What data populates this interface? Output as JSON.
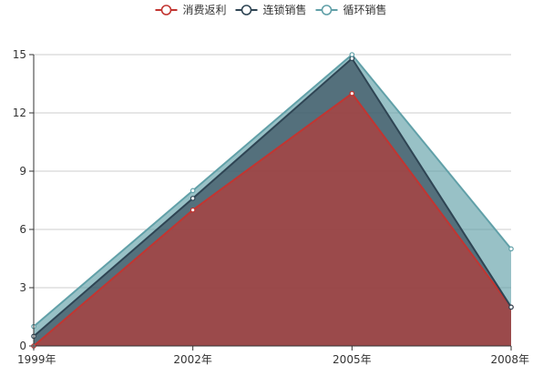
{
  "chart_data": {
    "type": "area",
    "stacked": true,
    "categories": [
      "1999年",
      "2002年",
      "2005年",
      "2008年"
    ],
    "series": [
      {
        "name": "消费返利",
        "values": [
          0,
          7,
          13,
          2
        ],
        "color": "#c23531"
      },
      {
        "name": "连锁销售",
        "values": [
          0.5,
          0.6,
          1.8,
          0.0
        ],
        "color": "#2f4554"
      },
      {
        "name": "循环销售",
        "values": [
          0.5,
          0.4,
          0.2,
          3.0
        ],
        "color": "#61a0a8"
      }
    ],
    "ylim": [
      0,
      15
    ],
    "yticks": [
      0,
      3,
      6,
      9,
      12,
      15
    ],
    "grid": true,
    "legend_position": "top-center"
  }
}
